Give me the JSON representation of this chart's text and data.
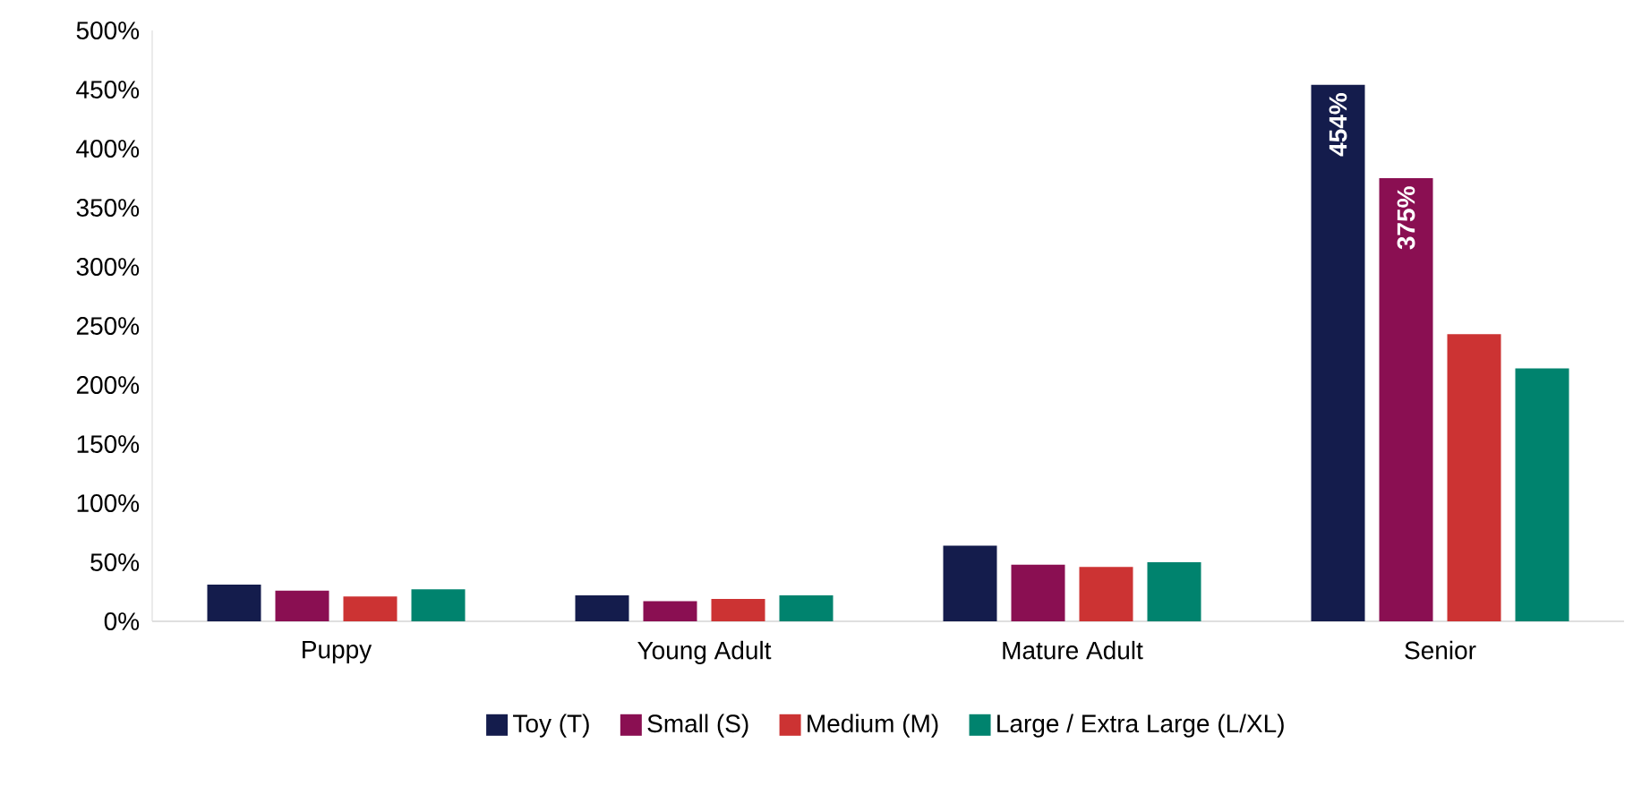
{
  "chart_data": {
    "type": "bar",
    "categories": [
      "Puppy",
      "Young Adult",
      "Mature Adult",
      "Senior"
    ],
    "series": [
      {
        "name": "Toy (T)",
        "color": "#141c4c",
        "values": [
          31,
          22,
          64,
          454
        ],
        "value_labels": [
          null,
          null,
          null,
          "454%"
        ]
      },
      {
        "name": "Small (S)",
        "color": "#8a0f52",
        "values": [
          26,
          17,
          48,
          375
        ],
        "value_labels": [
          null,
          null,
          null,
          "375%"
        ]
      },
      {
        "name": "Medium (M)",
        "color": "#cc3333",
        "values": [
          21,
          19,
          46,
          243
        ]
      },
      {
        "name": "Large / Extra Large (L/XL)",
        "color": "#00836e",
        "values": [
          27,
          22,
          50,
          214
        ]
      }
    ],
    "ylim": [
      0,
      500
    ],
    "yticks": [
      {
        "value": 0,
        "label": "0%"
      },
      {
        "value": 50,
        "label": "50%"
      },
      {
        "value": 100,
        "label": "100%"
      },
      {
        "value": 150,
        "label": "150%"
      },
      {
        "value": 200,
        "label": "200%"
      },
      {
        "value": 250,
        "label": "250%"
      },
      {
        "value": 300,
        "label": "300%"
      },
      {
        "value": 350,
        "label": "350%"
      },
      {
        "value": 400,
        "label": "400%"
      },
      {
        "value": 450,
        "label": "450%"
      },
      {
        "value": 500,
        "label": "500%"
      }
    ],
    "legend": "bottom"
  }
}
